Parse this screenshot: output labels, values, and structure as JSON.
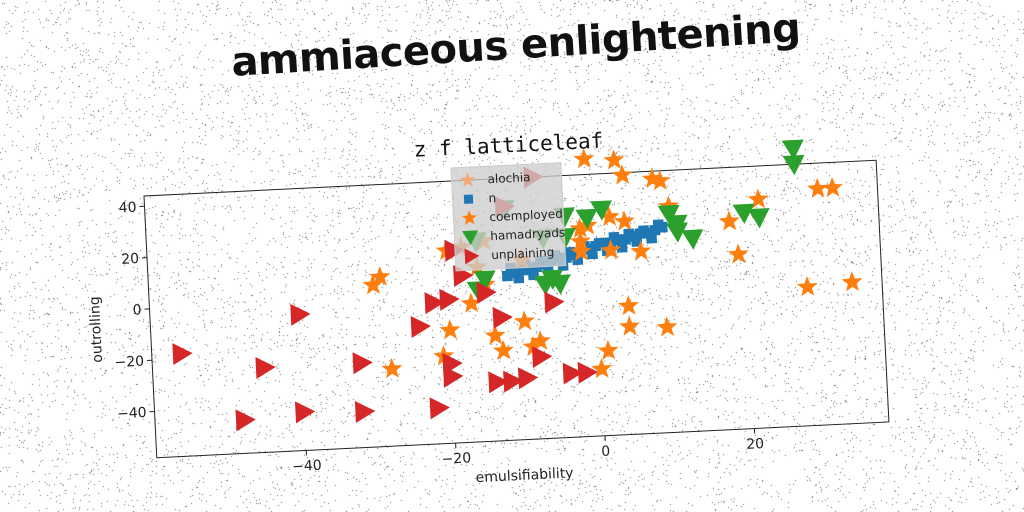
{
  "header": {
    "title": "ammiaceous enlightening"
  },
  "colors": {
    "alochia": "#f5a87a",
    "n": "#1f77b4",
    "coemployed": "#ff7f0e",
    "hamadryads": "#2ca02c",
    "unplaining": "#d62728"
  },
  "chart_data": {
    "type": "scatter",
    "title": "z f latticeleaf",
    "xlabel": "emulsifiability",
    "ylabel": "outrolling",
    "xlim": [
      -60,
      38
    ],
    "ylim": [
      -58,
      44
    ],
    "xticks": [
      "−40",
      "−20",
      "0",
      "20"
    ],
    "yticks": [
      "−40",
      "−20",
      "0",
      "20",
      "40"
    ],
    "xtick_values": [
      -40,
      -20,
      0,
      20
    ],
    "ytick_values": [
      -40,
      -20,
      0,
      20,
      40
    ],
    "grid": false,
    "legend_placement": "upper-center",
    "series": [
      {
        "name": "alochia",
        "marker": "star",
        "values": []
      },
      {
        "name": "n",
        "marker": "square",
        "points": [
          [
            -12,
            6
          ],
          [
            -11,
            7
          ],
          [
            -10,
            8
          ],
          [
            -9,
            8
          ],
          [
            -8,
            9
          ],
          [
            -7,
            10
          ],
          [
            -6,
            11
          ],
          [
            -5,
            12
          ],
          [
            -4,
            12
          ],
          [
            -3,
            13
          ],
          [
            -2,
            14
          ],
          [
            -1,
            15
          ],
          [
            0,
            16
          ],
          [
            1,
            17
          ],
          [
            2,
            17
          ],
          [
            3,
            18
          ],
          [
            4,
            18
          ],
          [
            5,
            19
          ],
          [
            6,
            20
          ],
          [
            7,
            20
          ],
          [
            8,
            21
          ],
          [
            9,
            22
          ],
          [
            -11.5,
            9
          ],
          [
            -9.5,
            10
          ],
          [
            -7.5,
            11
          ],
          [
            -5.5,
            13
          ],
          [
            -3.5,
            14
          ],
          [
            -1.5,
            16
          ],
          [
            0.5,
            17
          ],
          [
            2.5,
            19
          ],
          [
            4.5,
            20
          ],
          [
            6.5,
            21
          ],
          [
            8.5,
            23
          ],
          [
            -10.5,
            5
          ],
          [
            -8.5,
            6
          ],
          [
            -6.5,
            8
          ],
          [
            -4.5,
            9
          ],
          [
            -2.5,
            11
          ],
          [
            -0.5,
            13
          ],
          [
            1.5,
            14
          ],
          [
            3.5,
            15
          ],
          [
            5.5,
            17
          ],
          [
            7.5,
            18
          ]
        ]
      },
      {
        "name": "coemployed",
        "marker": "star",
        "points": [
          [
            -1,
            50
          ],
          [
            3,
            49
          ],
          [
            4,
            43
          ],
          [
            8,
            41
          ],
          [
            9,
            40
          ],
          [
            30,
            34
          ],
          [
            32,
            34
          ],
          [
            22,
            31
          ],
          [
            10,
            30
          ],
          [
            2,
            27
          ],
          [
            4,
            25
          ],
          [
            -1,
            24
          ],
          [
            -2,
            23
          ],
          [
            18,
            23
          ],
          [
            -15,
            20
          ],
          [
            -18,
            18
          ],
          [
            -2,
            18
          ],
          [
            -20,
            17
          ],
          [
            -2,
            14
          ],
          [
            2,
            14
          ],
          [
            6,
            13
          ],
          [
            -10,
            12
          ],
          [
            -16,
            10
          ],
          [
            -29,
            8
          ],
          [
            -30,
            5
          ],
          [
            19,
            10
          ],
          [
            -15,
            3
          ],
          [
            -17,
            -4
          ],
          [
            28,
            -4
          ],
          [
            34,
            -3
          ],
          [
            4,
            -8
          ],
          [
            -10,
            -12
          ],
          [
            -20,
            -14
          ],
          [
            4,
            -16
          ],
          [
            -14,
            -17
          ],
          [
            9,
            -17
          ],
          [
            -8,
            -20
          ],
          [
            -9,
            -22
          ],
          [
            -13,
            -23
          ],
          [
            -21,
            -24
          ],
          [
            1,
            -25
          ],
          [
            -28,
            -28
          ],
          [
            0,
            -32
          ]
        ]
      },
      {
        "name": "hamadryads",
        "marker": "triangle-down",
        "points": [
          [
            27,
            50
          ],
          [
            27,
            44
          ],
          [
            -12,
            32
          ],
          [
            1,
            30
          ],
          [
            -4,
            28
          ],
          [
            -1,
            27
          ],
          [
            10,
            27
          ],
          [
            20,
            26
          ],
          [
            22,
            24
          ],
          [
            11,
            23
          ],
          [
            11,
            20
          ],
          [
            13,
            17
          ],
          [
            -16,
            20
          ],
          [
            -7,
            20
          ],
          [
            -4,
            20
          ],
          [
            -15,
            5
          ],
          [
            -6,
            4
          ],
          [
            -7,
            2
          ],
          [
            -5,
            2
          ],
          [
            -16,
            1
          ]
        ]
      },
      {
        "name": "unplaining",
        "marker": "triangle-right",
        "points": [
          [
            -56,
            -18
          ],
          [
            -40,
            -5
          ],
          [
            -45,
            -25
          ],
          [
            -32,
            -25
          ],
          [
            -24,
            -12
          ],
          [
            -22,
            -3
          ],
          [
            -20,
            -2
          ],
          [
            -15,
            0
          ],
          [
            -13,
            -10
          ],
          [
            -20,
            -27
          ],
          [
            -20,
            -32
          ],
          [
            -12,
            -35
          ],
          [
            -14,
            -35
          ],
          [
            -10,
            -34
          ],
          [
            -8,
            -26
          ],
          [
            -4,
            -33
          ],
          [
            -2,
            -33
          ],
          [
            -6,
            -5
          ],
          [
            -48,
            -45
          ],
          [
            -40,
            -43
          ],
          [
            -32,
            -44
          ],
          [
            -22,
            -44
          ],
          [
            -18,
            7
          ],
          [
            -19,
            17
          ],
          [
            -12,
            33
          ],
          [
            -8,
            44
          ]
        ]
      }
    ]
  }
}
